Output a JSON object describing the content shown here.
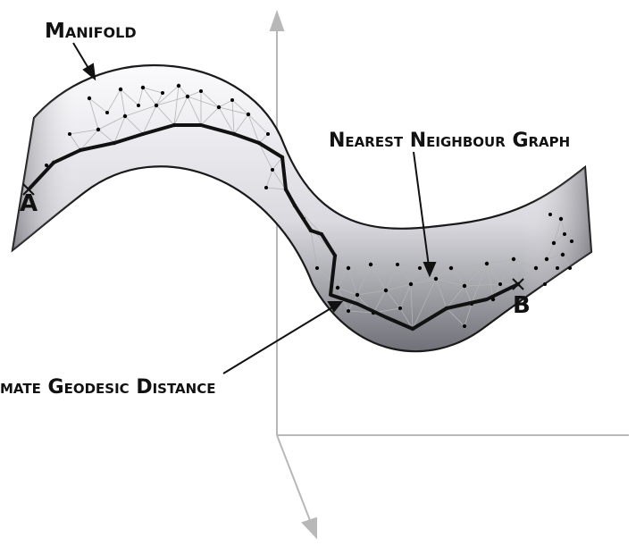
{
  "labels": {
    "manifold": "Manifold",
    "nearest_neighbour_graph": "Nearest Neighbour Graph",
    "approx_geodesic": "mate Geodesic Distance",
    "point_a": "A",
    "point_b": "B"
  },
  "colors": {
    "axis": "#b8b8b8",
    "surface_edge": "#1a1a1a",
    "surface_light": "#f4f4f8",
    "surface_dark": "#6a6a72",
    "graph_edge": "#b4b4b4",
    "node": "#000000",
    "path": "#111111"
  }
}
